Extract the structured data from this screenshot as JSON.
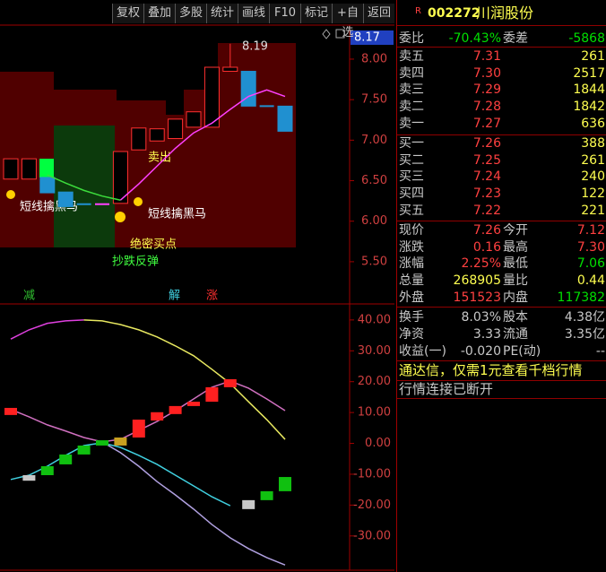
{
  "toolbar": [
    "复权",
    "叠加",
    "多股",
    "统计",
    "画线",
    "F10",
    "标记",
    "+自选",
    "返回"
  ],
  "chart": {
    "ylim": [
      4.99,
      8.42
    ],
    "yticks": [
      {
        "value": 8,
        "label": "8.00"
      },
      {
        "value": 7.5,
        "label": "7.50"
      },
      {
        "value": 7,
        "label": "7.00"
      },
      {
        "value": 6.5,
        "label": "6.50"
      },
      {
        "value": 6,
        "label": "6.00"
      },
      {
        "value": 5.5,
        "label": "5.50"
      }
    ],
    "current": {
      "value": 8.17,
      "label": "8.17"
    },
    "open": [
      6.52,
      6.52,
      6.54,
      6.36,
      6.21,
      6.21,
      6.22,
      6.88,
      6.99,
      7.02,
      7.16,
      7.16,
      7.85,
      7.85,
      7.42,
      7.42
    ],
    "close": [
      6.77,
      6.77,
      6.35,
      6.18,
      6.21,
      6.21,
      6.86,
      7.15,
      7.14,
      7.26,
      7.35,
      7.9,
      7.9,
      7.42,
      7.42,
      7.11
    ],
    "high": [
      6.77,
      6.77,
      6.54,
      6.36,
      6.21,
      6.21,
      6.86,
      7.15,
      7.14,
      7.26,
      7.35,
      7.9,
      8.19,
      7.85,
      7.42,
      7.42
    ],
    "low": [
      6.52,
      6.52,
      6.35,
      6.18,
      6.21,
      6.21,
      6.22,
      6.88,
      6.99,
      7.02,
      7.16,
      7.16,
      7.85,
      7.42,
      7.42,
      7.11
    ],
    "ma": [
      {
        "color": "#3cdc3c",
        "values": [
          null,
          null,
          6.57,
          6.47,
          6.38,
          6.31,
          6.26,
          null,
          null,
          null,
          null,
          null,
          null,
          null,
          null,
          null
        ]
      },
      {
        "color": "#ff40ff",
        "values": [
          null,
          null,
          null,
          null,
          null,
          null,
          6.26,
          6.46,
          6.68,
          6.9,
          7.09,
          7.21,
          7.38,
          7.54,
          7.62,
          7.54
        ]
      }
    ],
    "annotations": [
      "8.19",
      "卖出",
      "短线擒黑马",
      "短线擒黑马",
      "绝密买点",
      "抄跌反弹"
    ],
    "signals": [
      "减",
      "解",
      "涨"
    ]
  },
  "indicator": {
    "ylim": [
      -41.1,
      44.9
    ],
    "yticks": [
      {
        "value": 40,
        "label": "40.00"
      },
      {
        "value": 30,
        "label": "30.00"
      },
      {
        "value": 20,
        "label": "20.00"
      },
      {
        "value": 10,
        "label": "10.00"
      },
      {
        "value": 0,
        "label": "0.00"
      },
      {
        "value": -10,
        "label": "-10.00"
      },
      {
        "value": -20,
        "label": "-20.00"
      },
      {
        "value": -30,
        "label": "-30.00"
      }
    ],
    "tops": [
      11.5,
      -10.3,
      -7.4,
      -3.6,
      -0.7,
      1.0,
      1.9,
      7.7,
      10.1,
      12.1,
      13.5,
      18.2,
      20.8,
      -18.4,
      -15.5,
      -10.9
    ],
    "bottoms": [
      9.2,
      -12.1,
      -10.3,
      -6.8,
      -3.6,
      -0.7,
      -0.7,
      1.9,
      7.4,
      9.5,
      12.1,
      13.5,
      18.2,
      -21.3,
      -18.4,
      -15.5
    ],
    "colors": [
      "#ff2020",
      "#c8c8c8",
      "#10c010",
      "#10c010",
      "#10c010",
      "#10c010",
      "#c8a020",
      "#ff2020",
      "#ff2020",
      "#ff2020",
      "#ff2020",
      "#ff2020",
      "#ff2020",
      "#c8c8c8",
      "#10c010",
      "#10c010"
    ],
    "lines": [
      {
        "color": "#e040e0",
        "values": [
          33.8,
          36.8,
          38.9,
          39.7,
          40,
          null,
          null,
          null,
          null,
          null,
          null,
          null,
          null,
          null,
          null,
          null
        ]
      },
      {
        "color": "#e8e860",
        "values": [
          null,
          null,
          null,
          null,
          40,
          39.7,
          38.5,
          36.8,
          34.5,
          31.6,
          28.4,
          24,
          19.4,
          13.5,
          7.7,
          1.3
        ]
      },
      {
        "color": "#d070c0",
        "values": [
          11,
          8.6,
          6,
          4,
          1.9,
          0.5,
          1.3,
          4.2,
          7.1,
          10.6,
          14.4,
          18.2,
          20.2,
          17.9,
          14.4,
          10.6
        ]
      },
      {
        "color": "#40d0e0",
        "values": [
          -11.7,
          -10.3,
          -7.4,
          -3.9,
          -0.7,
          0.2,
          -1.3,
          -3.9,
          -6.8,
          -10.3,
          -13.8,
          -17.3,
          -20.2,
          null,
          null,
          null
        ]
      },
      {
        "color": "#b0a0e0",
        "values": [
          null,
          null,
          null,
          null,
          null,
          0.5,
          -3,
          -7.4,
          -12.4,
          -16.7,
          -21.3,
          -26.3,
          -30.6,
          -34.1,
          -37,
          -39.4
        ]
      }
    ]
  },
  "quote": {
    "flag": "R",
    "code": "002272",
    "name": "川润股份",
    "ratio": [
      "委比",
      "-70.43%",
      "委差",
      "-5868"
    ],
    "asks": [
      [
        "卖五",
        "7.31",
        "261"
      ],
      [
        "卖四",
        "7.30",
        "2517"
      ],
      [
        "卖三",
        "7.29",
        "1844"
      ],
      [
        "卖二",
        "7.28",
        "1842"
      ],
      [
        "卖一",
        "7.27",
        "636"
      ]
    ],
    "bids": [
      [
        "买一",
        "7.26",
        "388"
      ],
      [
        "买二",
        "7.25",
        "261"
      ],
      [
        "买三",
        "7.24",
        "240"
      ],
      [
        "买四",
        "7.23",
        "122"
      ],
      [
        "买五",
        "7.22",
        "221"
      ]
    ],
    "stats": [
      [
        "现价",
        "7.26",
        "今开",
        "7.12"
      ],
      [
        "涨跌",
        "0.16",
        "最高",
        "7.30"
      ],
      [
        "涨幅",
        "2.25%",
        "最低",
        "7.06"
      ],
      [
        "总量",
        "268905",
        "量比",
        "0.44"
      ],
      [
        "外盘",
        "151523",
        "内盘",
        "117382"
      ]
    ],
    "finance": [
      [
        "换手",
        "8.03%",
        "股本",
        "4.38亿"
      ],
      [
        "净资",
        "3.33",
        "流通",
        "3.35亿"
      ],
      [
        "收益(一)",
        "-0.020",
        "PE(动)",
        "--"
      ]
    ],
    "notice": "通达信，仅需1元查看千档行情",
    "status": "行情连接已断开"
  }
}
